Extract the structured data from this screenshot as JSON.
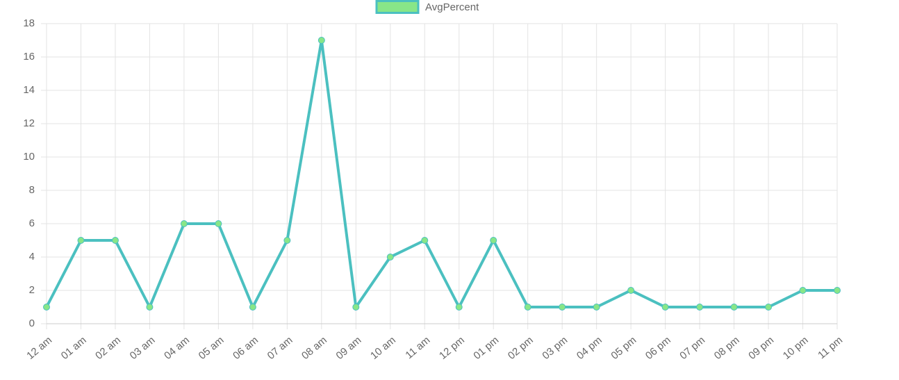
{
  "chart_data": {
    "type": "line",
    "categories": [
      "12 am",
      "01 am",
      "02 am",
      "03 am",
      "04 am",
      "05 am",
      "06 am",
      "07 am",
      "08 am",
      "09 am",
      "10 am",
      "11 am",
      "12 pm",
      "01 pm",
      "02 pm",
      "03 pm",
      "04 pm",
      "05 pm",
      "06 pm",
      "07 pm",
      "08 pm",
      "09 pm",
      "10 pm",
      "11 pm"
    ],
    "series": [
      {
        "name": "AvgPercent",
        "color": "#4bc0c0",
        "point_color": "#88e688",
        "values": [
          1,
          5,
          5,
          1,
          6,
          6,
          1,
          5,
          17,
          1,
          4,
          5,
          1,
          5,
          1,
          1,
          1,
          2,
          1,
          1,
          1,
          1,
          2,
          2
        ]
      }
    ],
    "ylim": [
      0,
      18
    ],
    "yticks": [
      0,
      2,
      4,
      6,
      8,
      10,
      12,
      14,
      16,
      18
    ],
    "grid": true,
    "legend": "top"
  }
}
